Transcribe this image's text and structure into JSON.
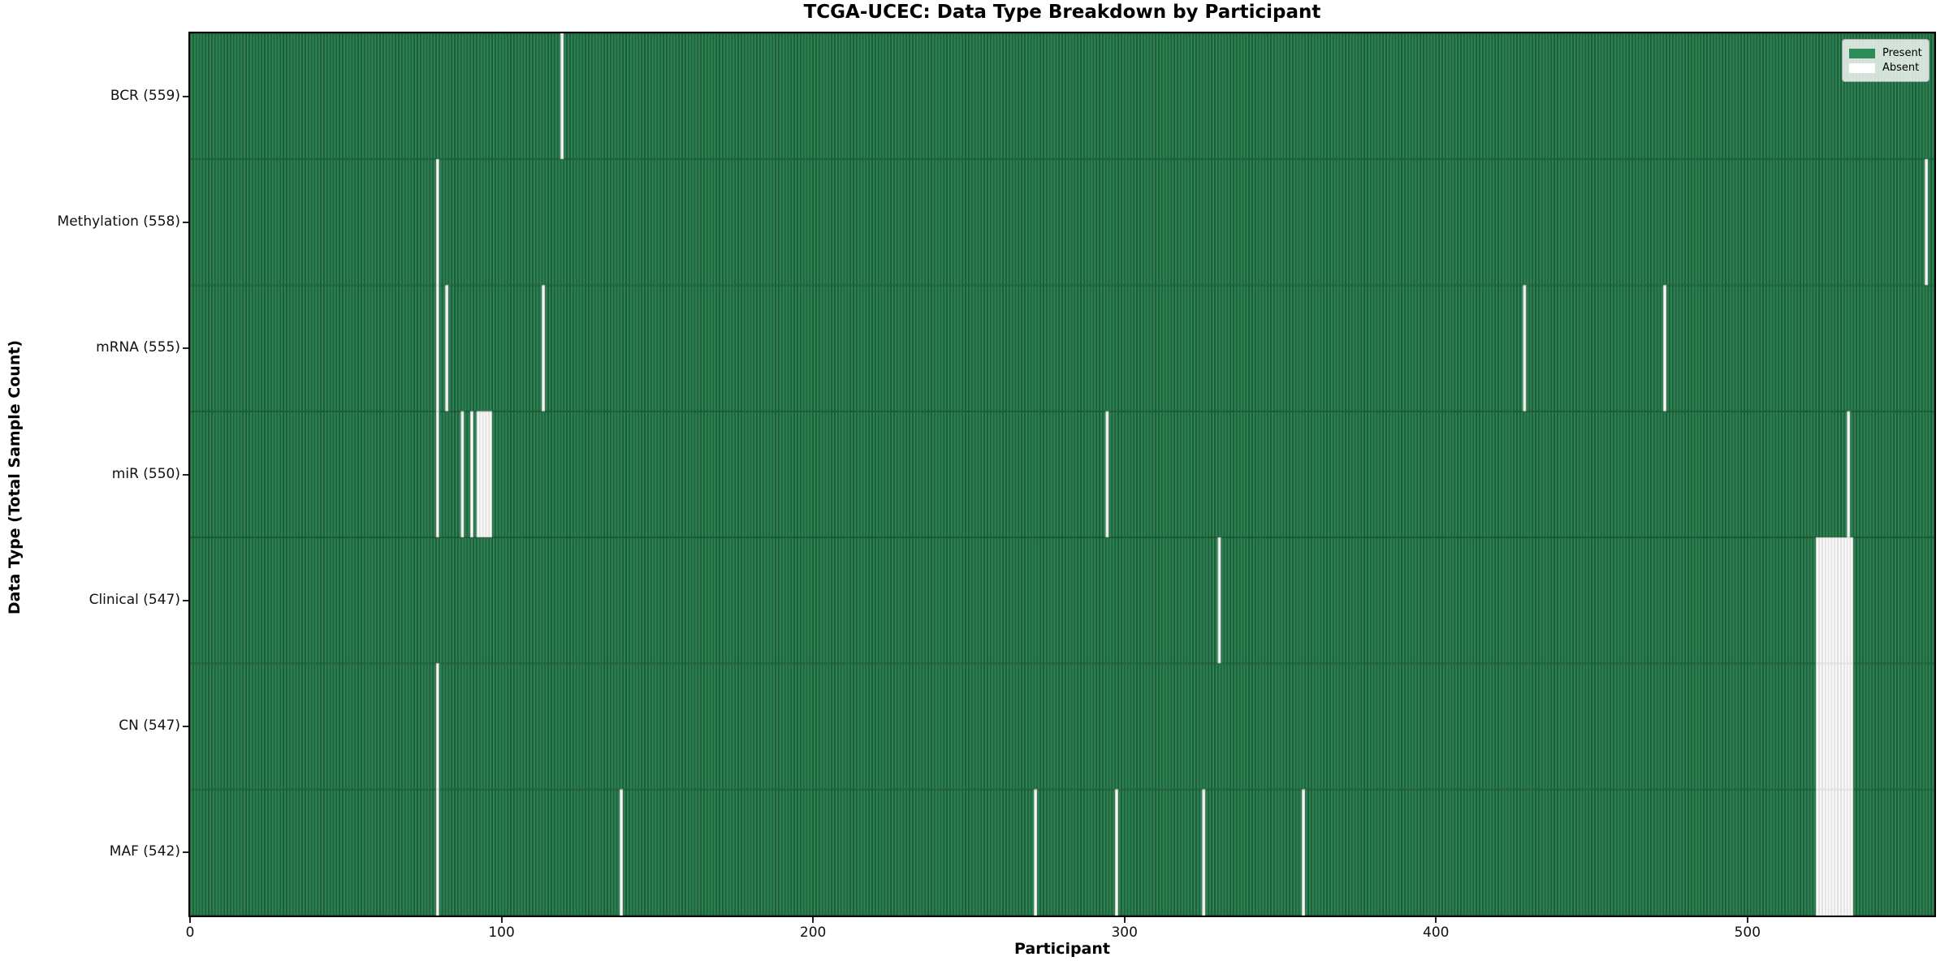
{
  "chart_data": {
    "type": "heatmap",
    "title": "TCGA-UCEC: Data Type Breakdown by Participant",
    "xlabel": "Participant",
    "ylabel": "Data Type (Total Sample Count)",
    "n_participants": 560,
    "xlim": [
      0,
      560
    ],
    "x_ticks": [
      0,
      100,
      200,
      300,
      400,
      500
    ],
    "grid": false,
    "legend_position": "upper right",
    "colors": {
      "present_fill": "#2e8b57",
      "present_edge": "#1b5233",
      "absent_fill": "#ffffff",
      "absent_edge": "#d8d8d8",
      "spine": "#000000"
    },
    "rows": [
      {
        "data_type": "BCR",
        "label": "BCR (559)",
        "present_count": 559,
        "absent_participants": [
          119
        ]
      },
      {
        "data_type": "Methylation",
        "label": "Methylation (558)",
        "present_count": 558,
        "absent_participants": [
          79,
          557
        ]
      },
      {
        "data_type": "mRNA",
        "label": "mRNA (555)",
        "present_count": 555,
        "absent_participants": [
          79,
          82,
          113,
          428,
          473
        ]
      },
      {
        "data_type": "miR",
        "label": "miR (550)",
        "present_count": 550,
        "absent_participants": [
          79,
          87,
          90,
          92,
          93,
          94,
          95,
          96,
          294,
          532
        ]
      },
      {
        "data_type": "Clinical",
        "label": "Clinical (547)",
        "present_count": 547,
        "absent_participants": [
          330,
          522,
          523,
          524,
          525,
          526,
          527,
          528,
          529,
          530,
          531,
          532,
          533
        ]
      },
      {
        "data_type": "CN",
        "label": "CN (547)",
        "present_count": 547,
        "absent_participants": [
          79,
          522,
          523,
          524,
          525,
          526,
          527,
          528,
          529,
          530,
          531,
          532,
          533
        ]
      },
      {
        "data_type": "MAF",
        "label": "MAF (542)",
        "present_count": 542,
        "absent_participants": [
          79,
          138,
          271,
          297,
          325,
          357,
          522,
          523,
          524,
          525,
          526,
          527,
          528,
          529,
          530,
          531,
          532,
          533
        ]
      }
    ]
  },
  "legend": {
    "items": [
      {
        "label": "Present",
        "color": "#2e8b57"
      },
      {
        "label": "Absent",
        "color": "#ffffff"
      }
    ]
  }
}
